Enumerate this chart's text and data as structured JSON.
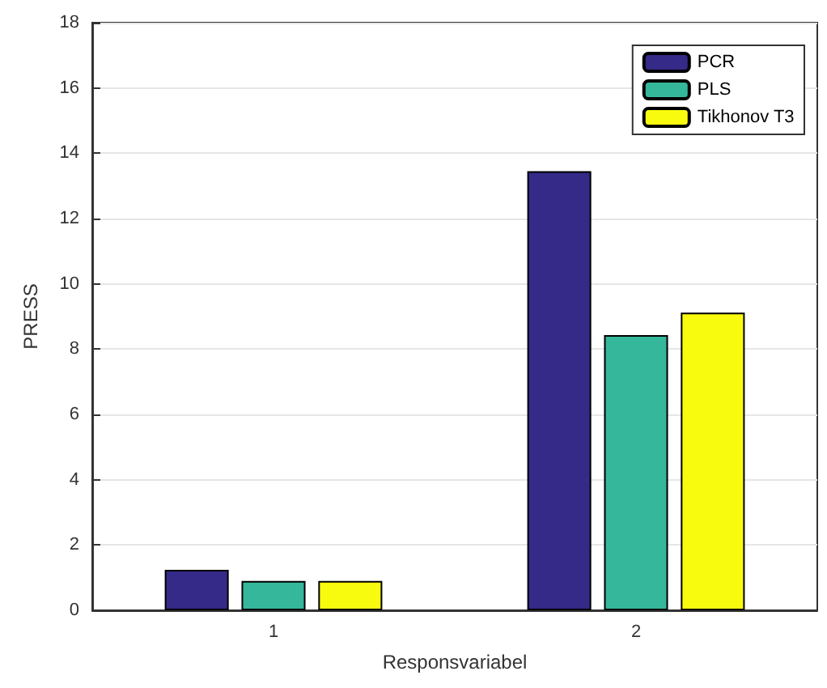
{
  "chart_data": {
    "type": "bar",
    "xlabel": "Responsvariabel",
    "ylabel": "PRESS",
    "categories": [
      "1",
      "2"
    ],
    "series": [
      {
        "name": "PCR",
        "color": "#352a87",
        "values": [
          1.24,
          13.45
        ]
      },
      {
        "name": "PLS",
        "color": "#35b79b",
        "values": [
          0.9,
          8.43
        ]
      },
      {
        "name": "Tikhonov T3",
        "color": "#f9fb0e",
        "values": [
          0.9,
          9.12
        ]
      }
    ],
    "ylim": [
      0,
      18
    ],
    "yticks": [
      0,
      2,
      4,
      6,
      8,
      10,
      12,
      14,
      16,
      18
    ],
    "grid": "y",
    "legend": "top right"
  }
}
